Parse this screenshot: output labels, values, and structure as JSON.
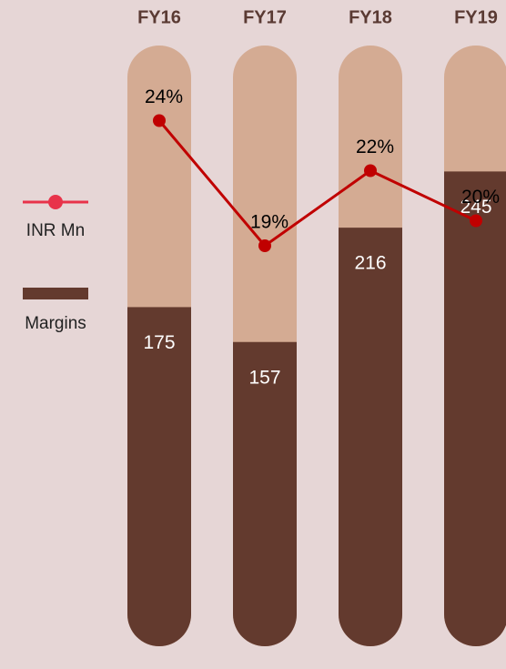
{
  "chart_data": {
    "type": "bar",
    "categories": [
      "FY16",
      "FY17",
      "FY18",
      "FY19"
    ],
    "ylim": [
      0,
      310
    ],
    "y2lim": [
      3,
      27
    ],
    "series": [
      {
        "name": "Margins",
        "color": "#633a2e",
        "values": [
          175,
          157,
          216,
          245
        ]
      },
      {
        "name": "INR Mn",
        "type": "line",
        "axis": "y2",
        "color": "#c00000",
        "marker_color": "#e8334a",
        "values": [
          24,
          19,
          22,
          20
        ],
        "value_labels": [
          "24%",
          "19%",
          "22%",
          "20%"
        ]
      }
    ],
    "background_color": "#d4ab93"
  }
}
